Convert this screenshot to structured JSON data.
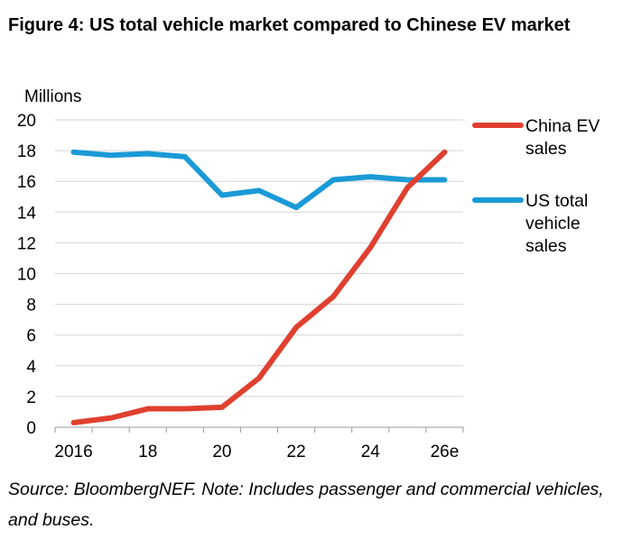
{
  "title": "Figure 4:  US total vehicle market compared to Chinese EV market",
  "footnote": "Source: BloombergNEF. Note: Includes passenger and commercial vehicles, and buses.",
  "chart_data": {
    "type": "line",
    "title": "Figure 4:  US total vehicle market compared to Chinese EV market",
    "ylabel": "Millions",
    "xlabel": "",
    "x": [
      "2016",
      "2017",
      "2018",
      "2019",
      "2020",
      "2021",
      "2022",
      "2023",
      "2024",
      "2025",
      "2026e"
    ],
    "x_tick_labels": [
      "2016",
      "18",
      "20",
      "22",
      "24",
      "26e"
    ],
    "y_ticks": [
      0,
      2,
      4,
      6,
      8,
      10,
      12,
      14,
      16,
      18,
      20
    ],
    "ylim": [
      0,
      20
    ],
    "grid": "horizontal",
    "legend_placement": "right",
    "series": [
      {
        "name": "China EV sales",
        "color": "#e0402f",
        "values": [
          0.3,
          0.6,
          1.2,
          1.2,
          1.3,
          3.2,
          6.5,
          8.5,
          11.7,
          15.6,
          17.9
        ]
      },
      {
        "name": "US total vehicle sales",
        "color": "#1a9ad6",
        "values": [
          17.9,
          17.7,
          17.8,
          17.6,
          15.1,
          15.4,
          14.3,
          16.1,
          16.3,
          16.1,
          16.1
        ]
      }
    ],
    "legend_lines": [
      [
        "China EV",
        "sales"
      ],
      [
        "US total",
        "vehicle",
        "sales"
      ]
    ]
  }
}
